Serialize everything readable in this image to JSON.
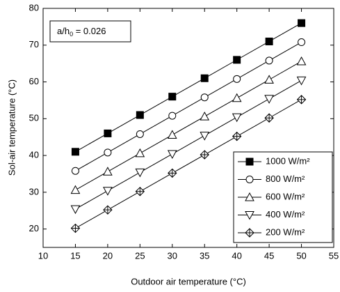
{
  "chart_data": {
    "type": "line",
    "xlabel": "Outdoor air temperature (°C)",
    "ylabel": "Sol-air temperature (°C)",
    "annotation": {
      "main": "a/h",
      "sub": "0",
      "rest": " = 0.026"
    },
    "x": [
      15,
      20,
      25,
      30,
      35,
      40,
      45,
      50
    ],
    "series": [
      {
        "name": "1000 W/m²",
        "color": "#000000",
        "marker": "square-filled",
        "values": [
          41,
          46,
          51,
          56,
          61,
          66,
          71,
          76
        ]
      },
      {
        "name": "800 W/m²",
        "color": "#000000",
        "marker": "circle",
        "values": [
          35.8,
          40.8,
          45.8,
          50.8,
          55.8,
          60.8,
          65.8,
          70.8
        ]
      },
      {
        "name": "600 W/m²",
        "color": "#000000",
        "marker": "triangle-up",
        "values": [
          30.6,
          35.6,
          40.6,
          45.6,
          50.6,
          55.6,
          60.6,
          65.6
        ]
      },
      {
        "name": "400 W/m²",
        "color": "#000000",
        "marker": "triangle-down",
        "values": [
          25.4,
          30.4,
          35.4,
          40.4,
          45.4,
          50.4,
          55.4,
          60.4
        ]
      },
      {
        "name": "200 W/m²",
        "color": "#000000",
        "marker": "diamond-cross",
        "values": [
          20.2,
          25.2,
          30.2,
          35.2,
          40.2,
          45.2,
          50.2,
          55.2
        ]
      }
    ],
    "xlim": [
      10,
      55
    ],
    "xticks": [
      10,
      15,
      20,
      25,
      30,
      35,
      40,
      45,
      50,
      55
    ],
    "ylim": [
      15,
      80
    ],
    "yticks": [
      20,
      30,
      40,
      50,
      60,
      70,
      80
    ],
    "legend": "lower-right",
    "grid": false
  }
}
